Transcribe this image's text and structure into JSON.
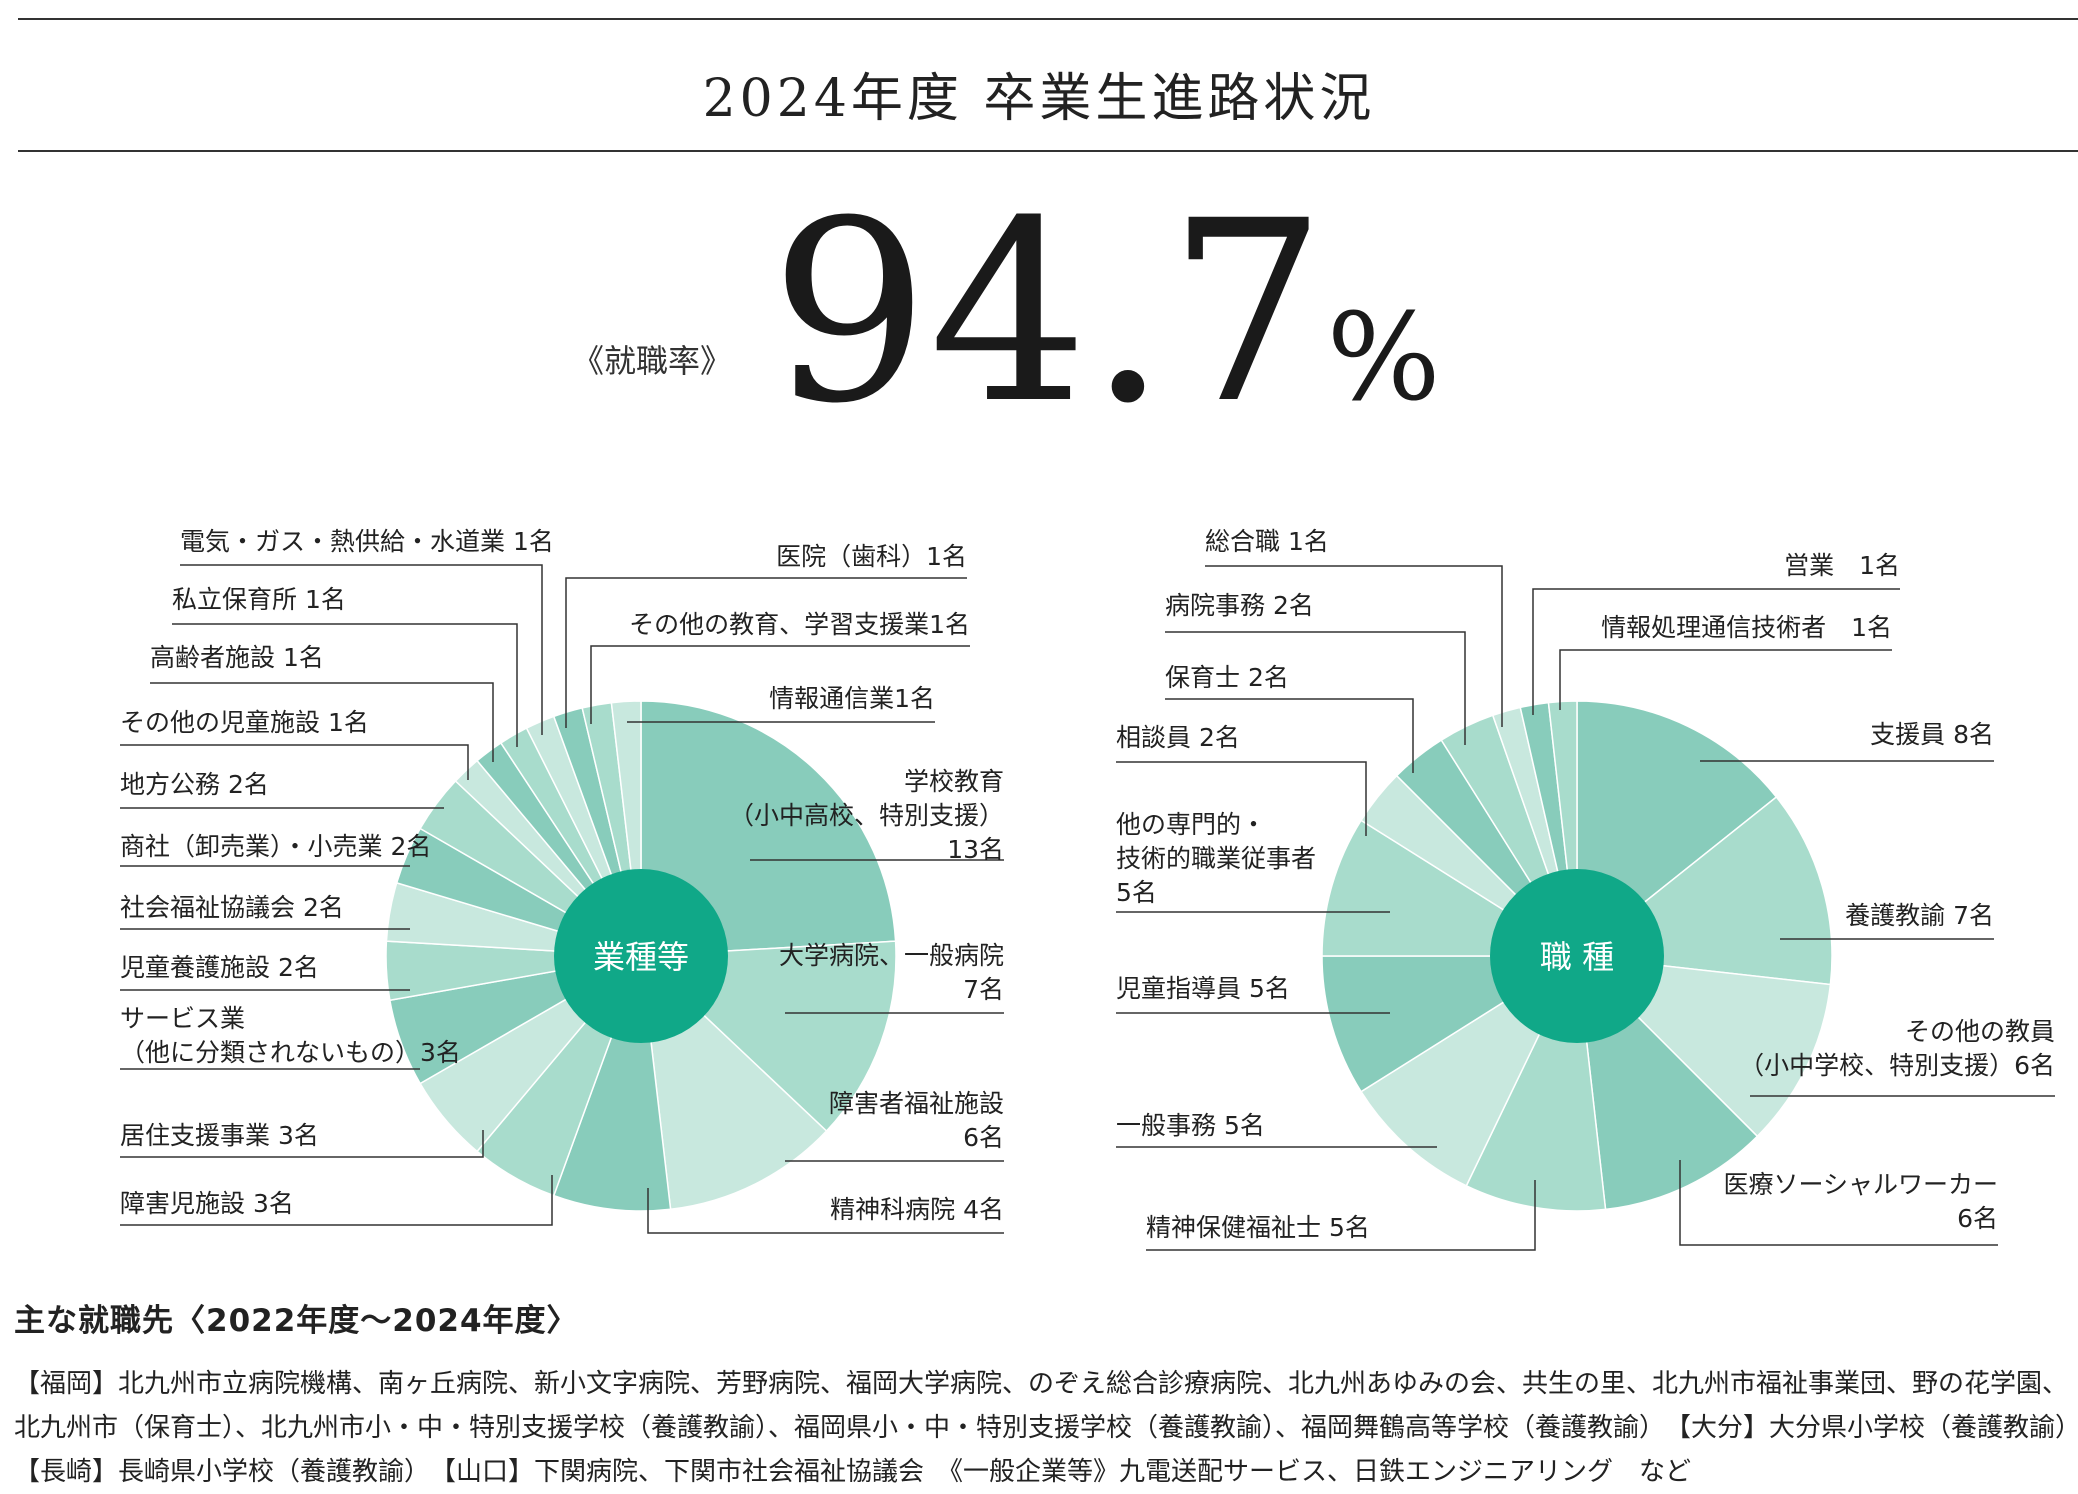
{
  "title": "2024年度 卒業生進路状況",
  "employment_rate": {
    "label": "《就職率》",
    "value": "94.7",
    "unit": "%"
  },
  "chart_data": [
    {
      "type": "pie",
      "center_label": "業種等",
      "colors": [
        "#88ccbb",
        "#a8dccc",
        "#c8e8de",
        "#10a888"
      ],
      "slices": [
        {
          "name": "学校教育（小中高校、特別支援）",
          "lines": [
            "学校教育",
            "（小中高校、特別支援）",
            "13名"
          ],
          "value": 13
        },
        {
          "name": "大学病院、一般病院",
          "lines": [
            "大学病院、一般病院",
            "7名"
          ],
          "value": 7
        },
        {
          "name": "障害者福祉施設",
          "lines": [
            "障害者福祉施設",
            "6名"
          ],
          "value": 6
        },
        {
          "name": "精神科病院",
          "lines": [
            "精神科病院 4名"
          ],
          "value": 4
        },
        {
          "name": "障害児施設",
          "lines": [
            "障害児施設 3名"
          ],
          "value": 3
        },
        {
          "name": "居住支援事業",
          "lines": [
            "居住支援事業 3名"
          ],
          "value": 3
        },
        {
          "name": "サービス業（他に分類されないもの）",
          "lines": [
            "サービス業",
            "（他に分類されないもの）3名"
          ],
          "value": 3
        },
        {
          "name": "児童養護施設",
          "lines": [
            "児童養護施設 2名"
          ],
          "value": 2
        },
        {
          "name": "社会福祉協議会",
          "lines": [
            "社会福祉協議会 2名"
          ],
          "value": 2
        },
        {
          "name": "商社（卸売業）・小売業",
          "lines": [
            "商社（卸売業）・小売業 2名"
          ],
          "value": 2
        },
        {
          "name": "地方公務",
          "lines": [
            "地方公務 2名"
          ],
          "value": 2
        },
        {
          "name": "その他の児童施設",
          "lines": [
            "その他の児童施設 1名"
          ],
          "value": 1
        },
        {
          "name": "高齢者施設",
          "lines": [
            "高齢者施設 1名"
          ],
          "value": 1
        },
        {
          "name": "私立保育所",
          "lines": [
            "私立保育所 1名"
          ],
          "value": 1
        },
        {
          "name": "電気・ガス・熱供給・水道業",
          "lines": [
            "電気・ガス・熱供給・水道業 1名"
          ],
          "value": 1
        },
        {
          "name": "医院（歯科）",
          "lines": [
            "医院（歯科）1名"
          ],
          "value": 1
        },
        {
          "name": "その他の教育、学習支援業",
          "lines": [
            "その他の教育、学習支援業1名"
          ],
          "value": 1
        },
        {
          "name": "情報通信業",
          "lines": [
            "情報通信業1名"
          ],
          "value": 1
        }
      ]
    },
    {
      "type": "pie",
      "center_label": "職 種",
      "colors": [
        "#88ccbb",
        "#a8dccc",
        "#c8e8de",
        "#10a888"
      ],
      "slices": [
        {
          "name": "支援員",
          "lines": [
            "支援員 8名"
          ],
          "value": 8
        },
        {
          "name": "養護教諭",
          "lines": [
            "養護教諭 7名"
          ],
          "value": 7
        },
        {
          "name": "その他の教員（小中学校、特別支援）",
          "lines": [
            "その他の教員",
            "（小中学校、特別支援）6名"
          ],
          "value": 6
        },
        {
          "name": "医療ソーシャルワーカー",
          "lines": [
            "医療ソーシャルワーカー",
            "6名"
          ],
          "value": 6
        },
        {
          "name": "精神保健福祉士",
          "lines": [
            "精神保健福祉士 5名"
          ],
          "value": 5
        },
        {
          "name": "一般事務",
          "lines": [
            "一般事務 5名"
          ],
          "value": 5
        },
        {
          "name": "児童指導員",
          "lines": [
            "児童指導員 5名"
          ],
          "value": 5
        },
        {
          "name": "他の専門的・技術的職業従事者",
          "lines": [
            "他の専門的・",
            "技術的職業従事者",
            "5名"
          ],
          "value": 5
        },
        {
          "name": "相談員",
          "lines": [
            "相談員 2名"
          ],
          "value": 2
        },
        {
          "name": "保育士",
          "lines": [
            "保育士 2名"
          ],
          "value": 2
        },
        {
          "name": "病院事務",
          "lines": [
            "病院事務 2名"
          ],
          "value": 2
        },
        {
          "name": "総合職",
          "lines": [
            "総合職 1名"
          ],
          "value": 1
        },
        {
          "name": "営業",
          "lines": [
            "営業　1名"
          ],
          "value": 1
        },
        {
          "name": "情報処理通信技術者",
          "lines": [
            "情報処理通信技術者　1名"
          ],
          "value": 1
        }
      ]
    }
  ],
  "employers": {
    "heading": "主な就職先〈2022年度〜2024年度〉",
    "lines": [
      "【福岡】北九州市立病院機構、南ヶ丘病院、新小文字病院、芳野病院、福岡大学病院、のぞえ総合診療病院、北九州あゆみの会、共生の里、北九州市福祉事業団、野の花学園、",
      "北九州市（保育士）、北九州市小・中・特別支援学校（養護教諭）、福岡県小・中・特別支援学校（養護教諭）、福岡舞鶴高等学校（養護教諭）　【大分】大分県小学校（養護教諭）",
      "【長崎】長崎県小学校（養護教諭）　【山口】下関病院、下関市社会福祉協議会　《一般企業等》九電送配サービス、日鉄エンジニアリング　など"
    ]
  }
}
